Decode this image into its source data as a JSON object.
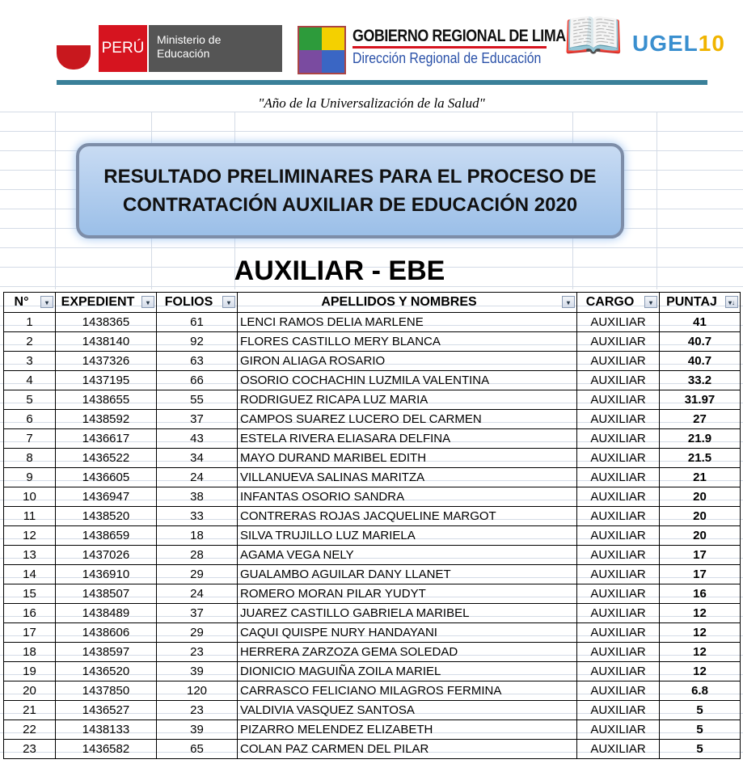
{
  "header": {
    "peru": "PERÚ",
    "ministerio": "Ministerio de Educación",
    "gore_title": "GOBIERNO REGIONAL DE LIMA",
    "gore_sub": "Dirección Regional de Educación",
    "ugel": "UGEL",
    "ugel_num": "10",
    "motto": "\"Año de la Universalización de la Salud\""
  },
  "title": "RESULTADO PRELIMINARES PARA EL PROCESO DE CONTRATACIÓN AUXILIAR DE EDUCACIÓN 2020",
  "subtitle": "AUXILIAR - EBE",
  "table": {
    "columns": [
      "N°",
      "EXPEDIENT",
      "FOLIOS",
      "APELLIDOS Y NOMBRES",
      "CARGO",
      "PUNTAJ"
    ],
    "rows": [
      [
        "1",
        "1438365",
        "61",
        "LENCI RAMOS DELIA MARLENE",
        "AUXILIAR",
        "41"
      ],
      [
        "2",
        "1438140",
        "92",
        "FLORES CASTILLO MERY BLANCA",
        "AUXILIAR",
        "40.7"
      ],
      [
        "3",
        "1437326",
        "63",
        "GIRON ALIAGA ROSARIO",
        "AUXILIAR",
        "40.7"
      ],
      [
        "4",
        "1437195",
        "66",
        "OSORIO COCHACHIN LUZMILA VALENTINA",
        "AUXILIAR",
        "33.2"
      ],
      [
        "5",
        "1438655",
        "55",
        "RODRIGUEZ RICAPA LUZ MARIA",
        "AUXILIAR",
        "31.97"
      ],
      [
        "6",
        "1438592",
        "37",
        "CAMPOS SUAREZ LUCERO DEL CARMEN",
        "AUXILIAR",
        "27"
      ],
      [
        "7",
        "1436617",
        "43",
        "ESTELA RIVERA ELIASARA DELFINA",
        "AUXILIAR",
        "21.9"
      ],
      [
        "8",
        "1436522",
        "34",
        "MAYO DURAND MARIBEL EDITH",
        "AUXILIAR",
        "21.5"
      ],
      [
        "9",
        "1436605",
        "24",
        "VILLANUEVA SALINAS MARITZA",
        "AUXILIAR",
        "21"
      ],
      [
        "10",
        "1436947",
        "38",
        "INFANTAS OSORIO SANDRA",
        "AUXILIAR",
        "20"
      ],
      [
        "11",
        "1438520",
        "33",
        "CONTRERAS ROJAS JACQUELINE MARGOT",
        "AUXILIAR",
        "20"
      ],
      [
        "12",
        "1438659",
        "18",
        "SILVA TRUJILLO LUZ MARIELA",
        "AUXILIAR",
        "20"
      ],
      [
        "13",
        "1437026",
        "28",
        "AGAMA VEGA NELY",
        "AUXILIAR",
        "17"
      ],
      [
        "14",
        "1436910",
        "29",
        "GUALAMBO AGUILAR DANY LLANET",
        "AUXILIAR",
        "17"
      ],
      [
        "15",
        "1438507",
        "24",
        "ROMERO MORAN PILAR YUDYT",
        "AUXILIAR",
        "16"
      ],
      [
        "16",
        "1438489",
        "37",
        "JUAREZ CASTILLO GABRIELA MARIBEL",
        "AUXILIAR",
        "12"
      ],
      [
        "17",
        "1438606",
        "29",
        "CAQUI QUISPE NURY HANDAYANI",
        "AUXILIAR",
        "12"
      ],
      [
        "18",
        "1438597",
        "23",
        "HERRERA ZARZOZA GEMA SOLEDAD",
        "AUXILIAR",
        "12"
      ],
      [
        "19",
        "1436520",
        "39",
        "DIONICIO MAGUIÑA ZOILA MARIEL",
        "AUXILIAR",
        "12"
      ],
      [
        "20",
        "1437850",
        "120",
        "CARRASCO FELICIANO MILAGROS FERMINA",
        "AUXILIAR",
        "6.8"
      ],
      [
        "21",
        "1436527",
        "23",
        "VALDIVIA VASQUEZ SANTOSA",
        "AUXILIAR",
        "5"
      ],
      [
        "22",
        "1438133",
        "39",
        "PIZARRO MELENDEZ ELIZABETH",
        "AUXILIAR",
        "5"
      ],
      [
        "23",
        "1436582",
        "65",
        "COLAN PAZ CARMEN DEL PILAR",
        "AUXILIAR",
        "5"
      ]
    ]
  }
}
